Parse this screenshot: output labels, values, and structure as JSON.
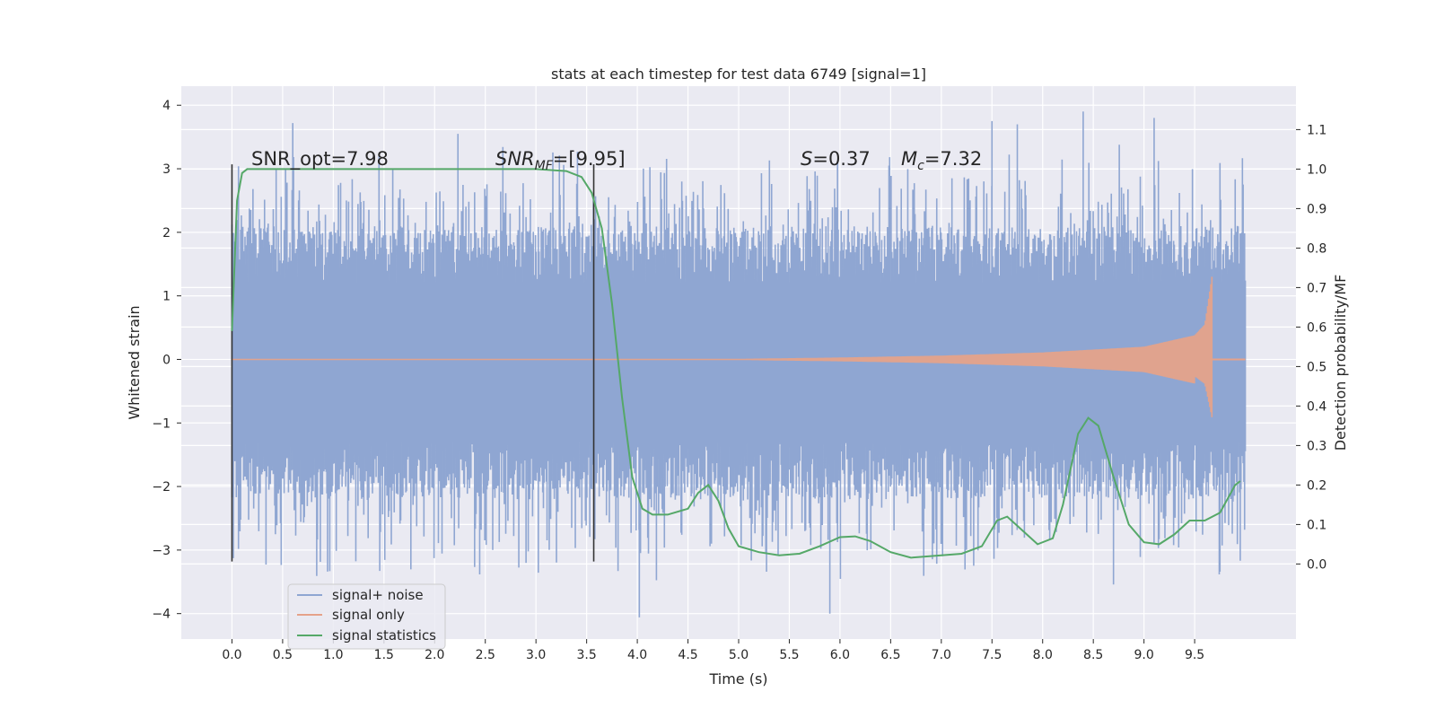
{
  "chart_data": {
    "type": "line",
    "title": "stats at each timestep for test data 6749 [signal=1]",
    "xlabel": "Time (s)",
    "ylabel_left": "Whitened strain",
    "ylabel_right": "Detection probability/MF",
    "xlim": [
      -0.5,
      10.5
    ],
    "ylim_left": [
      -4.4,
      4.3
    ],
    "ylim_right": [
      -0.19,
      1.21
    ],
    "x_ticks": [
      "0.0",
      "0.5",
      "1.0",
      "1.5",
      "2.0",
      "2.5",
      "3.0",
      "3.5",
      "4.0",
      "4.5",
      "5.0",
      "5.5",
      "6.0",
      "6.5",
      "7.0",
      "7.5",
      "8.0",
      "8.5",
      "9.0",
      "9.5"
    ],
    "y_ticks_left": [
      "4",
      "3",
      "2",
      "1",
      "0",
      "−1",
      "−2",
      "−3",
      "−4"
    ],
    "y_ticks_right": [
      "1.1",
      "1.0",
      "0.9",
      "0.8",
      "0.7",
      "0.6",
      "0.5",
      "0.4",
      "0.3",
      "0.2",
      "0.1",
      "0.0"
    ],
    "grid": true,
    "legend_position": "lower-left",
    "colors": {
      "noise": "#8fa6d2",
      "signal": "#e5a28a",
      "stats": "#55a868",
      "background": "#eaeaf2",
      "vline": "#333333"
    },
    "series": [
      {
        "name": "signal+ noise",
        "kind": "noise-band",
        "x_range": [
          0.0,
          10.0
        ],
        "core_band": [
          -1.3,
          1.2
        ],
        "spike_max": [
          3.8,
          -4.1
        ]
      },
      {
        "name": "signal only",
        "kind": "chirp",
        "x_range": [
          0.0,
          9.67
        ],
        "amplitude_points": [
          [
            0.0,
            0.0
          ],
          [
            5.0,
            0.01
          ],
          [
            6.0,
            0.03
          ],
          [
            7.0,
            0.06
          ],
          [
            8.0,
            0.11
          ],
          [
            9.0,
            0.2
          ],
          [
            9.5,
            0.38
          ],
          [
            9.6,
            0.55
          ],
          [
            9.67,
            1.3
          ]
        ]
      },
      {
        "name": "signal statistics",
        "kind": "line",
        "x": [
          0.0,
          0.05,
          0.1,
          0.15,
          0.2,
          0.5,
          1.0,
          1.5,
          2.0,
          2.5,
          3.0,
          3.3,
          3.45,
          3.55,
          3.65,
          3.75,
          3.85,
          3.95,
          4.05,
          4.15,
          4.3,
          4.5,
          4.6,
          4.7,
          4.8,
          4.9,
          5.0,
          5.2,
          5.4,
          5.6,
          5.8,
          6.0,
          6.15,
          6.3,
          6.5,
          6.7,
          7.0,
          7.2,
          7.4,
          7.55,
          7.65,
          7.8,
          7.95,
          8.1,
          8.2,
          8.35,
          8.45,
          8.55,
          8.7,
          8.85,
          9.0,
          9.15,
          9.3,
          9.45,
          9.6,
          9.75,
          9.9,
          9.95
        ],
        "y": [
          0.59,
          0.92,
          0.99,
          1.0,
          1.0,
          1.0,
          1.0,
          1.0,
          1.0,
          1.0,
          1.0,
          0.995,
          0.98,
          0.94,
          0.85,
          0.66,
          0.42,
          0.22,
          0.14,
          0.125,
          0.125,
          0.14,
          0.18,
          0.2,
          0.16,
          0.09,
          0.045,
          0.03,
          0.022,
          0.026,
          0.045,
          0.068,
          0.07,
          0.058,
          0.03,
          0.016,
          0.022,
          0.026,
          0.045,
          0.11,
          0.12,
          0.085,
          0.05,
          0.065,
          0.15,
          0.33,
          0.37,
          0.35,
          0.22,
          0.1,
          0.055,
          0.05,
          0.075,
          0.11,
          0.11,
          0.13,
          0.2,
          0.21
        ]
      }
    ],
    "vlines": [
      0.0,
      3.57
    ],
    "annotations": {
      "snr_opt": "SNR_opt=7.98",
      "snr_mf_label": "SNR",
      "snr_mf_sub": "MF",
      "snr_mf_value": "=[9.95]",
      "s_label": "S",
      "s_value": "=0.37",
      "mc_label": "M",
      "mc_sub": "c",
      "mc_value": "=7.32"
    }
  }
}
